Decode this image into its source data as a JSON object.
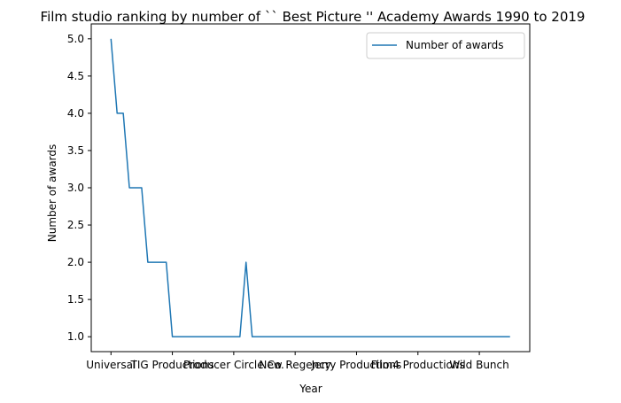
{
  "chart_data": {
    "type": "line",
    "title": "Film studio ranking by number of `` Best Picture '' Academy Awards 1990 to 2019",
    "xlabel": "Year",
    "ylabel": "Number of awards",
    "ylim": [
      0.8,
      5.2
    ],
    "yticks": [
      "1.0",
      "1.5",
      "2.0",
      "2.5",
      "3.0",
      "3.5",
      "4.0",
      "4.5",
      "5.0"
    ],
    "xtick_labels": [
      {
        "index": 0,
        "label": "Universal"
      },
      {
        "index": 10,
        "label": "TIG Productions"
      },
      {
        "index": 20,
        "label": "Producer Circle Co."
      },
      {
        "index": 30,
        "label": "New Regency"
      },
      {
        "index": 40,
        "label": "Jerry Productions"
      },
      {
        "index": 50,
        "label": "Film4 Productions"
      },
      {
        "index": 60,
        "label": "Wild Bunch"
      }
    ],
    "point_count": 66,
    "series": [
      {
        "name": "Number of awards",
        "color": "#1f77b4",
        "values": [
          5,
          4,
          4,
          3,
          3,
          3,
          2,
          2,
          2,
          2,
          1,
          1,
          1,
          1,
          1,
          1,
          1,
          1,
          1,
          1,
          1,
          1,
          2,
          1,
          1,
          1,
          1,
          1,
          1,
          1,
          1,
          1,
          1,
          1,
          1,
          1,
          1,
          1,
          1,
          1,
          1,
          1,
          1,
          1,
          1,
          1,
          1,
          1,
          1,
          1,
          1,
          1,
          1,
          1,
          1,
          1,
          1,
          1,
          1,
          1,
          1,
          1,
          1,
          1,
          1,
          1
        ]
      }
    ],
    "legend": "top-right",
    "grid": false
  }
}
